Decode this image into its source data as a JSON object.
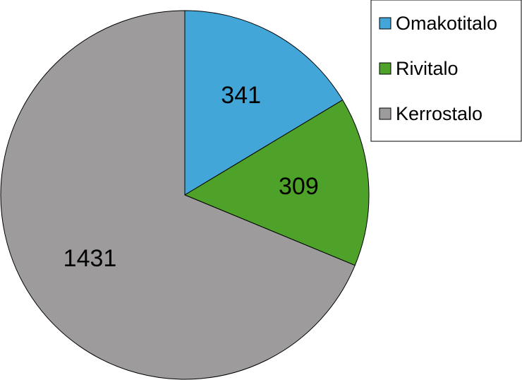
{
  "chart_data": {
    "type": "pie",
    "title": "",
    "start_angle_deg": 0,
    "direction": "clockwise",
    "legend_position": "top-right",
    "slices": [
      {
        "label": "Omakotitalo",
        "value": 341,
        "color": "#42a6d9"
      },
      {
        "label": "Rivitalo",
        "value": 309,
        "color": "#4ea22a"
      },
      {
        "label": "Kerrostalo",
        "value": 1431,
        "color": "#9d9b9c"
      }
    ]
  }
}
